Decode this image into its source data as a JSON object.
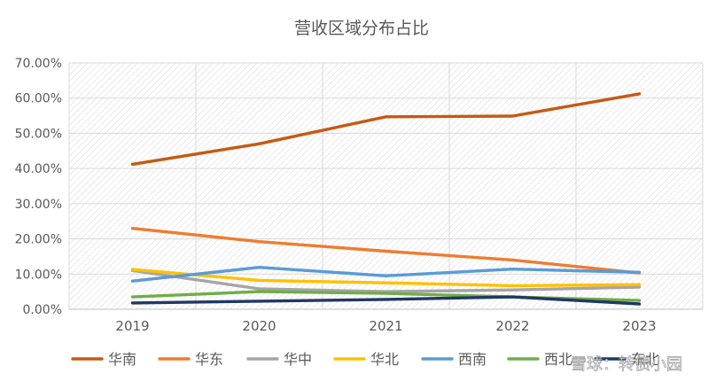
{
  "chart_data": {
    "type": "line",
    "title": "营收区域分布占比",
    "xlabel": "",
    "ylabel": "",
    "categories": [
      "2019",
      "2020",
      "2021",
      "2022",
      "2023"
    ],
    "ylim": [
      0,
      70
    ],
    "yticks": [
      0,
      10,
      20,
      30,
      40,
      50,
      60,
      70
    ],
    "ytick_labels": [
      "0.00%",
      "10.00%",
      "20.00%",
      "30.00%",
      "40.00%",
      "50.00%",
      "60.00%",
      "70.00%"
    ],
    "grid": true,
    "legend_position": "bottom",
    "series": [
      {
        "name": "华南",
        "color": "#C55A11",
        "values": [
          41.2,
          47.0,
          54.7,
          54.9,
          61.2
        ]
      },
      {
        "name": "华东",
        "color": "#ED7D31",
        "values": [
          23.0,
          19.2,
          16.5,
          14.0,
          10.3
        ]
      },
      {
        "name": "华中",
        "color": "#A5A5A5",
        "values": [
          11.0,
          5.8,
          5.0,
          5.5,
          6.3
        ]
      },
      {
        "name": "华北",
        "color": "#FFC000",
        "values": [
          11.3,
          8.2,
          7.5,
          6.7,
          7.0
        ]
      },
      {
        "name": "西南",
        "color": "#5B9BD5",
        "values": [
          8.0,
          11.9,
          9.5,
          11.4,
          10.5
        ]
      },
      {
        "name": "西北",
        "color": "#70AD47",
        "values": [
          3.5,
          5.0,
          4.5,
          3.5,
          2.5
        ]
      },
      {
        "name": "东北",
        "color": "#203864",
        "values": [
          1.8,
          2.3,
          2.8,
          3.5,
          1.5
        ]
      }
    ]
  },
  "watermark": "雪球：转债小园"
}
